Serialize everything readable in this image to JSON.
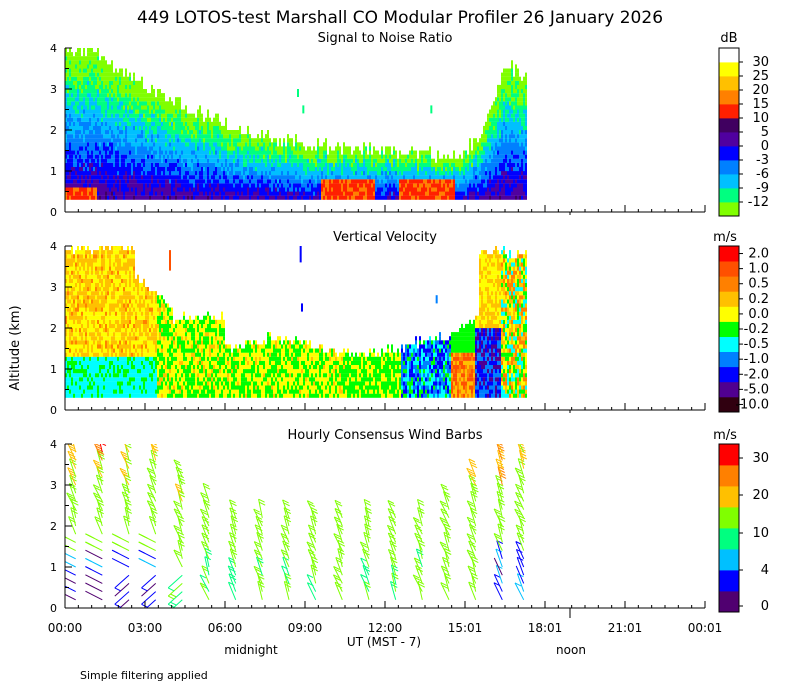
{
  "page": {
    "title": "449 LOTOS-test Marshall CO Modular Profiler 26 January 2026",
    "footnote": "Simple filtering applied",
    "y_axis_label": "Altitude (km)",
    "x_axis_label": "UT  (MST - 7)",
    "day_markers": [
      "midnight",
      "noon"
    ]
  },
  "colors": {
    "snr": [
      "#80ff00",
      "#00ff80",
      "#00c0ff",
      "#0080ff",
      "#0000ff",
      "#5000a0",
      "#400060",
      "#ff2000",
      "#ff8000",
      "#ffc000",
      "#ffff00",
      "#ffffff"
    ],
    "velocity": [
      "#300010",
      "#500090",
      "#0000ff",
      "#0080ff",
      "#00ffff",
      "#00ff00",
      "#ffff00",
      "#ffc000",
      "#ff8000",
      "#ff5000",
      "#ff0000"
    ],
    "wind": [
      "#500070",
      "#0000ff",
      "#00c0ff",
      "#00ff80",
      "#80ff00",
      "#ffc000",
      "#ff8000",
      "#ff0000"
    ]
  },
  "chart_data": [
    {
      "type": "heatmap",
      "title": "Signal to Noise Ratio",
      "units": "dB",
      "ylabel": "Altitude (km)",
      "xlabel": "UT  (MST - 7)",
      "ylim": [
        0,
        4
      ],
      "yticks": [
        "0",
        "1",
        "2",
        "3",
        "4"
      ],
      "xlim_hours": [
        0,
        24
      ],
      "xticks": [
        "00:00",
        "03:00",
        "06:00",
        "09:00",
        "12:00",
        "15:01",
        "18:01",
        "21:01",
        "00:01"
      ],
      "colorbar_labels": [
        "30",
        "25",
        "20",
        "15",
        "10",
        "5",
        "0",
        "-3",
        "-6",
        "-9",
        "-12"
      ],
      "data_end_hour": 17.3,
      "summary": {
        "hours": [
          0,
          1,
          3,
          5,
          7,
          9,
          11,
          13,
          14.5,
          15.5,
          16.5,
          17.3
        ],
        "top_altitude_km": [
          3.9,
          3.9,
          3.0,
          2.4,
          1.9,
          1.6,
          1.5,
          1.4,
          1.3,
          1.7,
          3.6,
          3.2
        ]
      }
    },
    {
      "type": "heatmap",
      "title": "Vertical Velocity",
      "units": "m/s",
      "ylim": [
        0,
        4
      ],
      "yticks": [
        "0",
        "1",
        "2",
        "3",
        "4"
      ],
      "colorbar_labels": [
        "2.0",
        "1.0",
        "0.5",
        "0.2",
        "0.0",
        "-0.2",
        "-0.5",
        "-1.0",
        "-2.0",
        "-5.0",
        "-10.0"
      ],
      "data_end_hour": 17.3
    },
    {
      "type": "scatter",
      "subtype": "wind_barbs",
      "title": "Hourly Consensus Wind Barbs",
      "units": "m/s",
      "ylim": [
        0,
        4
      ],
      "yticks": [
        "0",
        "1",
        "2",
        "3",
        "4"
      ],
      "colorbar_labels": [
        "30",
        "20",
        "10",
        "4",
        "0"
      ],
      "hours": [
        0.4,
        1.4,
        2.4,
        3.4,
        4.4,
        5.4,
        6.4,
        7.4,
        8.4,
        9.4,
        10.4,
        11.4,
        12.4,
        13.4,
        14.4,
        15.4,
        16.4,
        17.2
      ]
    }
  ]
}
